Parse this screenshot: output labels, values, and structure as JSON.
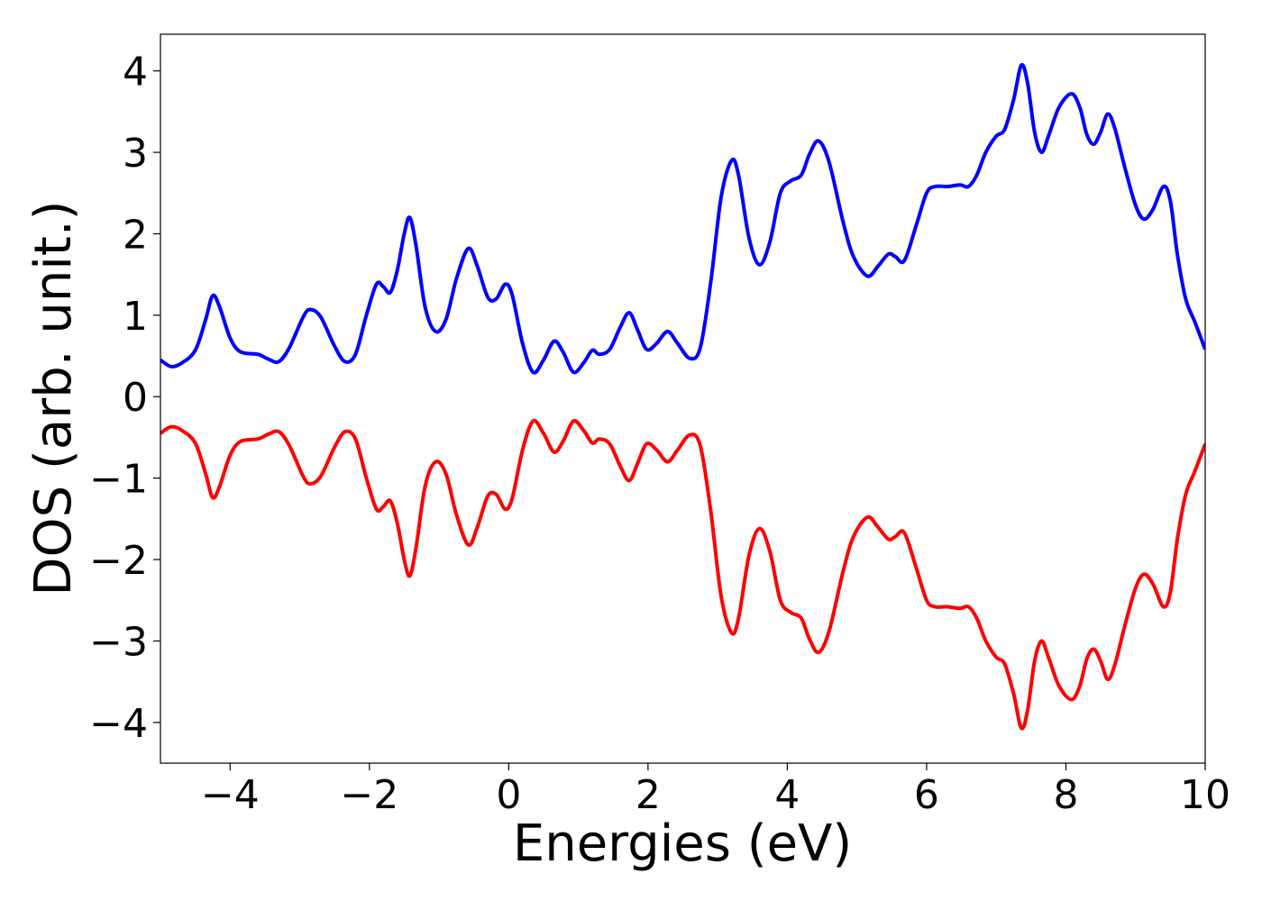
{
  "chart_data": {
    "type": "line",
    "xlabel": "Energies (eV)",
    "ylabel": "DOS (arb. unit.)",
    "xlim": [
      -5,
      10
    ],
    "ylim": [
      -4.5,
      4.45
    ],
    "xticks": [
      -4,
      -2,
      0,
      2,
      4,
      6,
      8,
      10
    ],
    "xtick_labels": [
      "−4",
      "−2",
      "0",
      "2",
      "4",
      "6",
      "8",
      "10"
    ],
    "yticks": [
      -4,
      -3,
      -2,
      -1,
      0,
      1,
      2,
      3,
      4
    ],
    "ytick_labels": [
      "−4",
      "−3",
      "−2",
      "−1",
      "0",
      "1",
      "2",
      "3",
      "4"
    ],
    "grid": false,
    "legend": "none",
    "series": [
      {
        "color": "#0000ff",
        "points": [
          [
            -5.0,
            0.45
          ],
          [
            -4.85,
            0.37
          ],
          [
            -4.7,
            0.41
          ],
          [
            -4.5,
            0.57
          ],
          [
            -4.35,
            0.95
          ],
          [
            -4.25,
            1.24
          ],
          [
            -4.15,
            1.1
          ],
          [
            -4.0,
            0.72
          ],
          [
            -3.85,
            0.55
          ],
          [
            -3.6,
            0.52
          ],
          [
            -3.45,
            0.46
          ],
          [
            -3.3,
            0.43
          ],
          [
            -3.15,
            0.6
          ],
          [
            -2.95,
            0.98
          ],
          [
            -2.85,
            1.07
          ],
          [
            -2.7,
            0.98
          ],
          [
            -2.5,
            0.62
          ],
          [
            -2.35,
            0.43
          ],
          [
            -2.2,
            0.52
          ],
          [
            -2.05,
            0.98
          ],
          [
            -1.9,
            1.38
          ],
          [
            -1.8,
            1.35
          ],
          [
            -1.7,
            1.28
          ],
          [
            -1.6,
            1.55
          ],
          [
            -1.5,
            2.0
          ],
          [
            -1.42,
            2.2
          ],
          [
            -1.33,
            1.85
          ],
          [
            -1.2,
            1.1
          ],
          [
            -1.05,
            0.8
          ],
          [
            -0.9,
            0.95
          ],
          [
            -0.75,
            1.45
          ],
          [
            -0.58,
            1.82
          ],
          [
            -0.45,
            1.6
          ],
          [
            -0.3,
            1.22
          ],
          [
            -0.18,
            1.2
          ],
          [
            -0.05,
            1.38
          ],
          [
            0.05,
            1.25
          ],
          [
            0.2,
            0.65
          ],
          [
            0.35,
            0.3
          ],
          [
            0.5,
            0.45
          ],
          [
            0.65,
            0.68
          ],
          [
            0.78,
            0.55
          ],
          [
            0.93,
            0.3
          ],
          [
            1.08,
            0.42
          ],
          [
            1.2,
            0.57
          ],
          [
            1.3,
            0.52
          ],
          [
            1.45,
            0.58
          ],
          [
            1.6,
            0.85
          ],
          [
            1.73,
            1.03
          ],
          [
            1.85,
            0.82
          ],
          [
            1.98,
            0.58
          ],
          [
            2.12,
            0.65
          ],
          [
            2.28,
            0.8
          ],
          [
            2.42,
            0.66
          ],
          [
            2.6,
            0.47
          ],
          [
            2.75,
            0.6
          ],
          [
            2.9,
            1.4
          ],
          [
            3.05,
            2.45
          ],
          [
            3.2,
            2.9
          ],
          [
            3.3,
            2.72
          ],
          [
            3.45,
            1.95
          ],
          [
            3.6,
            1.62
          ],
          [
            3.75,
            1.9
          ],
          [
            3.9,
            2.5
          ],
          [
            4.05,
            2.65
          ],
          [
            4.2,
            2.72
          ],
          [
            4.32,
            2.98
          ],
          [
            4.45,
            3.14
          ],
          [
            4.6,
            2.88
          ],
          [
            4.8,
            2.15
          ],
          [
            4.95,
            1.72
          ],
          [
            5.15,
            1.48
          ],
          [
            5.3,
            1.6
          ],
          [
            5.45,
            1.75
          ],
          [
            5.55,
            1.72
          ],
          [
            5.68,
            1.67
          ],
          [
            5.85,
            2.1
          ],
          [
            6.0,
            2.5
          ],
          [
            6.12,
            2.58
          ],
          [
            6.3,
            2.58
          ],
          [
            6.48,
            2.6
          ],
          [
            6.6,
            2.58
          ],
          [
            6.72,
            2.72
          ],
          [
            6.85,
            3.0
          ],
          [
            7.0,
            3.2
          ],
          [
            7.12,
            3.28
          ],
          [
            7.25,
            3.65
          ],
          [
            7.36,
            4.07
          ],
          [
            7.45,
            3.85
          ],
          [
            7.55,
            3.25
          ],
          [
            7.65,
            3.0
          ],
          [
            7.75,
            3.2
          ],
          [
            7.9,
            3.55
          ],
          [
            8.08,
            3.72
          ],
          [
            8.2,
            3.55
          ],
          [
            8.3,
            3.22
          ],
          [
            8.4,
            3.1
          ],
          [
            8.5,
            3.25
          ],
          [
            8.6,
            3.47
          ],
          [
            8.7,
            3.3
          ],
          [
            8.85,
            2.8
          ],
          [
            9.0,
            2.35
          ],
          [
            9.12,
            2.18
          ],
          [
            9.25,
            2.3
          ],
          [
            9.4,
            2.58
          ],
          [
            9.5,
            2.4
          ],
          [
            9.6,
            1.75
          ],
          [
            9.72,
            1.2
          ],
          [
            9.85,
            0.92
          ],
          [
            10.0,
            0.58
          ]
        ]
      },
      {
        "color": "#ff0000",
        "points": [
          [
            -5.0,
            -0.45
          ],
          [
            -4.85,
            -0.37
          ],
          [
            -4.7,
            -0.41
          ],
          [
            -4.5,
            -0.57
          ],
          [
            -4.35,
            -0.95
          ],
          [
            -4.25,
            -1.24
          ],
          [
            -4.15,
            -1.1
          ],
          [
            -4.0,
            -0.72
          ],
          [
            -3.85,
            -0.55
          ],
          [
            -3.6,
            -0.52
          ],
          [
            -3.45,
            -0.46
          ],
          [
            -3.3,
            -0.43
          ],
          [
            -3.15,
            -0.6
          ],
          [
            -2.95,
            -0.98
          ],
          [
            -2.85,
            -1.07
          ],
          [
            -2.7,
            -0.98
          ],
          [
            -2.5,
            -0.62
          ],
          [
            -2.35,
            -0.43
          ],
          [
            -2.2,
            -0.52
          ],
          [
            -2.05,
            -0.98
          ],
          [
            -1.9,
            -1.38
          ],
          [
            -1.8,
            -1.35
          ],
          [
            -1.7,
            -1.28
          ],
          [
            -1.6,
            -1.55
          ],
          [
            -1.5,
            -2.0
          ],
          [
            -1.42,
            -2.2
          ],
          [
            -1.33,
            -1.85
          ],
          [
            -1.2,
            -1.1
          ],
          [
            -1.05,
            -0.8
          ],
          [
            -0.9,
            -0.95
          ],
          [
            -0.75,
            -1.45
          ],
          [
            -0.58,
            -1.82
          ],
          [
            -0.45,
            -1.6
          ],
          [
            -0.3,
            -1.22
          ],
          [
            -0.18,
            -1.2
          ],
          [
            -0.05,
            -1.38
          ],
          [
            0.05,
            -1.25
          ],
          [
            0.2,
            -0.65
          ],
          [
            0.35,
            -0.3
          ],
          [
            0.5,
            -0.45
          ],
          [
            0.65,
            -0.68
          ],
          [
            0.78,
            -0.55
          ],
          [
            0.93,
            -0.3
          ],
          [
            1.08,
            -0.42
          ],
          [
            1.2,
            -0.57
          ],
          [
            1.3,
            -0.52
          ],
          [
            1.45,
            -0.58
          ],
          [
            1.6,
            -0.85
          ],
          [
            1.73,
            -1.03
          ],
          [
            1.85,
            -0.82
          ],
          [
            1.98,
            -0.58
          ],
          [
            2.12,
            -0.65
          ],
          [
            2.28,
            -0.8
          ],
          [
            2.42,
            -0.66
          ],
          [
            2.6,
            -0.47
          ],
          [
            2.75,
            -0.6
          ],
          [
            2.9,
            -1.4
          ],
          [
            3.05,
            -2.45
          ],
          [
            3.2,
            -2.9
          ],
          [
            3.3,
            -2.72
          ],
          [
            3.45,
            -1.95
          ],
          [
            3.6,
            -1.62
          ],
          [
            3.75,
            -1.9
          ],
          [
            3.9,
            -2.5
          ],
          [
            4.05,
            -2.65
          ],
          [
            4.2,
            -2.72
          ],
          [
            4.32,
            -2.98
          ],
          [
            4.45,
            -3.14
          ],
          [
            4.6,
            -2.88
          ],
          [
            4.8,
            -2.15
          ],
          [
            4.95,
            -1.72
          ],
          [
            5.15,
            -1.48
          ],
          [
            5.3,
            -1.6
          ],
          [
            5.45,
            -1.75
          ],
          [
            5.55,
            -1.72
          ],
          [
            5.68,
            -1.67
          ],
          [
            5.85,
            -2.1
          ],
          [
            6.0,
            -2.5
          ],
          [
            6.12,
            -2.58
          ],
          [
            6.3,
            -2.58
          ],
          [
            6.48,
            -2.6
          ],
          [
            6.6,
            -2.58
          ],
          [
            6.72,
            -2.72
          ],
          [
            6.85,
            -3.0
          ],
          [
            7.0,
            -3.2
          ],
          [
            7.12,
            -3.28
          ],
          [
            7.25,
            -3.65
          ],
          [
            7.36,
            -4.07
          ],
          [
            7.45,
            -3.85
          ],
          [
            7.55,
            -3.25
          ],
          [
            7.65,
            -3.0
          ],
          [
            7.75,
            -3.2
          ],
          [
            7.9,
            -3.55
          ],
          [
            8.08,
            -3.72
          ],
          [
            8.2,
            -3.55
          ],
          [
            8.3,
            -3.22
          ],
          [
            8.4,
            -3.1
          ],
          [
            8.5,
            -3.25
          ],
          [
            8.6,
            -3.47
          ],
          [
            8.7,
            -3.3
          ],
          [
            8.85,
            -2.8
          ],
          [
            9.0,
            -2.35
          ],
          [
            9.12,
            -2.18
          ],
          [
            9.25,
            -2.3
          ],
          [
            9.4,
            -2.58
          ],
          [
            9.5,
            -2.4
          ],
          [
            9.6,
            -1.75
          ],
          [
            9.72,
            -1.2
          ],
          [
            9.85,
            -0.92
          ],
          [
            10.0,
            -0.58
          ]
        ]
      }
    ]
  }
}
